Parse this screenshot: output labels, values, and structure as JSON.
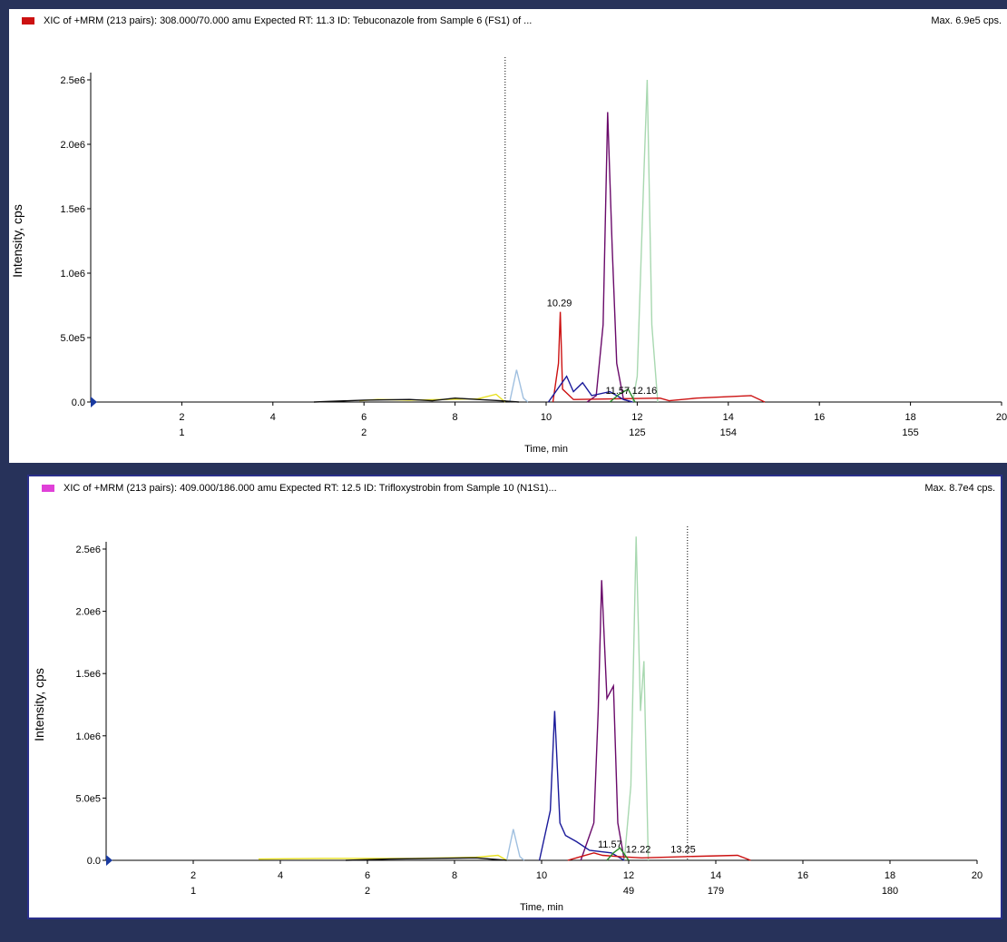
{
  "panels": [
    {
      "header_title": "XIC of +MRM (213 pairs): 308.000/70.000 amu Expected RT: 11.3 ID: Tebuconazole from Sample 6 (FS1) of ...",
      "header_max": "Max. 6.9e5 cps.",
      "legend_color": "#cc1111"
    },
    {
      "header_title": "XIC of +MRM (213 pairs): 409.000/186.000 amu Expected RT: 12.5 ID: Trifloxystrobin from Sample 10 (N1S1)...",
      "header_max": "Max. 8.7e4 cps.",
      "legend_color": "#e040d8"
    }
  ],
  "chart_data": [
    {
      "type": "line",
      "xlabel": "Time, min",
      "ylabel": "Intensity, cps",
      "xlim": [
        0,
        20
      ],
      "ylim": [
        0,
        2500000
      ],
      "x_ticks": [
        2,
        4,
        6,
        8,
        10,
        12,
        14,
        16,
        18,
        20
      ],
      "y_ticks": [
        "0.0",
        "5.0e5",
        "1.0e6",
        "1.5e6",
        "2.0e6",
        "2.5e6"
      ],
      "scan_labels": [
        {
          "x": 2,
          "text": "1"
        },
        {
          "x": 6,
          "text": "2"
        },
        {
          "x": 12,
          "text": "125"
        },
        {
          "x": 14,
          "text": "154"
        },
        {
          "x": 18,
          "text": "155"
        }
      ],
      "marker_line_x": 9.1,
      "annotations": [
        {
          "x": 10.29,
          "y": 700000,
          "text": "10.29"
        },
        {
          "x": 11.57,
          "y": 20000,
          "text": "11.57"
        },
        {
          "x": 12.16,
          "y": 20000,
          "text": "12.16"
        }
      ],
      "series": [
        {
          "color": "#6a0a6a",
          "points": [
            [
              10.9,
              0
            ],
            [
              11.1,
              50000
            ],
            [
              11.25,
              600000
            ],
            [
              11.35,
              2250000
            ],
            [
              11.45,
              1200000
            ],
            [
              11.55,
              300000
            ],
            [
              11.7,
              20000
            ],
            [
              11.9,
              0
            ]
          ]
        },
        {
          "color": "#a8d8b0",
          "points": [
            [
              11.9,
              0
            ],
            [
              12.0,
              200000
            ],
            [
              12.15,
              1800000
            ],
            [
              12.22,
              2500000
            ],
            [
              12.32,
              600000
            ],
            [
              12.45,
              0
            ]
          ]
        },
        {
          "color": "#cc1111",
          "points": [
            [
              10.15,
              0
            ],
            [
              10.27,
              300000
            ],
            [
              10.31,
              700000
            ],
            [
              10.36,
              100000
            ],
            [
              10.6,
              20000
            ],
            [
              12.5,
              30000
            ],
            [
              12.7,
              10000
            ],
            [
              13.3,
              30000
            ],
            [
              14.5,
              50000
            ],
            [
              14.8,
              0
            ]
          ]
        },
        {
          "color": "#1a1a9a",
          "points": [
            [
              10.05,
              0
            ],
            [
              10.25,
              100000
            ],
            [
              10.45,
              200000
            ],
            [
              10.6,
              80000
            ],
            [
              10.8,
              150000
            ],
            [
              11.0,
              50000
            ],
            [
              11.4,
              80000
            ],
            [
              11.7,
              20000
            ],
            [
              11.9,
              0
            ]
          ]
        },
        {
          "color": "#a0c0e0",
          "points": [
            [
              9.2,
              0
            ],
            [
              9.35,
              250000
            ],
            [
              9.5,
              30000
            ],
            [
              9.6,
              0
            ]
          ]
        },
        {
          "color": "#2a8a2a",
          "points": [
            [
              11.4,
              0
            ],
            [
              11.6,
              60000
            ],
            [
              11.8,
              100000
            ],
            [
              11.95,
              0
            ]
          ]
        },
        {
          "color": "#e8e020",
          "points": [
            [
              5.9,
              10000
            ],
            [
              6.3,
              20000
            ],
            [
              7.0,
              15000
            ],
            [
              8.5,
              25000
            ],
            [
              8.9,
              60000
            ],
            [
              9.1,
              0
            ]
          ]
        },
        {
          "color": "#111111",
          "points": [
            [
              4.9,
              0
            ],
            [
              6.0,
              15000
            ],
            [
              7.0,
              20000
            ],
            [
              7.5,
              10000
            ],
            [
              8.0,
              30000
            ],
            [
              8.5,
              20000
            ],
            [
              9.0,
              10000
            ],
            [
              9.4,
              0
            ]
          ]
        }
      ]
    },
    {
      "type": "line",
      "xlabel": "Time, min",
      "ylabel": "Intensity, cps",
      "xlim": [
        0,
        20
      ],
      "ylim": [
        0,
        2500000
      ],
      "x_ticks": [
        2,
        4,
        6,
        8,
        10,
        12,
        14,
        16,
        18,
        20
      ],
      "y_ticks": [
        "0.0",
        "5.0e5",
        "1.0e6",
        "1.5e6",
        "2.0e6",
        "2.5e6"
      ],
      "scan_labels": [
        {
          "x": 2,
          "text": "1"
        },
        {
          "x": 6,
          "text": "2"
        },
        {
          "x": 12,
          "text": "49"
        },
        {
          "x": 14,
          "text": "179"
        },
        {
          "x": 18,
          "text": "180"
        }
      ],
      "marker_line_x": 13.35,
      "annotations": [
        {
          "x": 11.57,
          "y": 60000,
          "text": "11.57"
        },
        {
          "x": 12.22,
          "y": 20000,
          "text": "12.22"
        },
        {
          "x": 13.25,
          "y": 20000,
          "text": "13.25"
        }
      ],
      "series": [
        {
          "color": "#6a0a6a",
          "points": [
            [
              10.9,
              0
            ],
            [
              11.1,
              200000
            ],
            [
              11.2,
              300000
            ],
            [
              11.3,
              1200000
            ],
            [
              11.38,
              2250000
            ],
            [
              11.5,
              1300000
            ],
            [
              11.65,
              1400000
            ],
            [
              11.75,
              300000
            ],
            [
              11.9,
              0
            ]
          ]
        },
        {
          "color": "#a8d8b0",
          "points": [
            [
              11.9,
              0
            ],
            [
              12.05,
              600000
            ],
            [
              12.17,
              2600000
            ],
            [
              12.27,
              1200000
            ],
            [
              12.35,
              1600000
            ],
            [
              12.45,
              0
            ]
          ]
        },
        {
          "color": "#1a1a9a",
          "points": [
            [
              9.95,
              0
            ],
            [
              10.2,
              400000
            ],
            [
              10.3,
              1200000
            ],
            [
              10.42,
              300000
            ],
            [
              10.55,
              200000
            ],
            [
              10.8,
              150000
            ],
            [
              11.1,
              80000
            ],
            [
              11.6,
              60000
            ],
            [
              11.9,
              0
            ]
          ]
        },
        {
          "color": "#a0c0e0",
          "points": [
            [
              9.2,
              0
            ],
            [
              9.35,
              250000
            ],
            [
              9.5,
              30000
            ],
            [
              9.6,
              0
            ]
          ]
        },
        {
          "color": "#cc1111",
          "points": [
            [
              10.6,
              0
            ],
            [
              11.2,
              60000
            ],
            [
              11.4,
              40000
            ],
            [
              11.8,
              30000
            ],
            [
              12.3,
              20000
            ],
            [
              13.3,
              30000
            ],
            [
              14.5,
              40000
            ],
            [
              14.8,
              0
            ]
          ]
        },
        {
          "color": "#2a8a2a",
          "points": [
            [
              11.5,
              0
            ],
            [
              11.65,
              60000
            ],
            [
              11.8,
              100000
            ],
            [
              12.0,
              0
            ]
          ]
        },
        {
          "color": "#e8e020",
          "points": [
            [
              3.5,
              10000
            ],
            [
              5.0,
              15000
            ],
            [
              7.0,
              15000
            ],
            [
              8.5,
              25000
            ],
            [
              9.0,
              40000
            ],
            [
              9.2,
              0
            ]
          ]
        },
        {
          "color": "#111111",
          "points": [
            [
              5.5,
              0
            ],
            [
              6.5,
              10000
            ],
            [
              7.5,
              15000
            ],
            [
              8.5,
              20000
            ],
            [
              9.2,
              0
            ]
          ]
        }
      ]
    }
  ]
}
